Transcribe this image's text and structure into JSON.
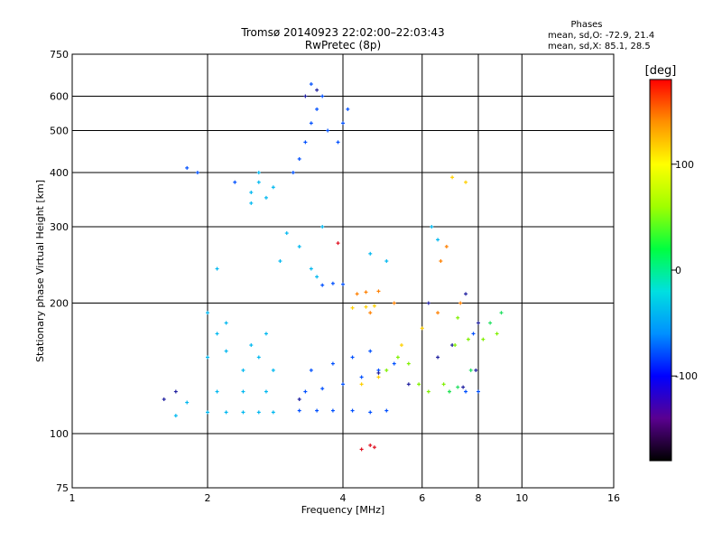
{
  "chart_data": {
    "type": "scatter",
    "title": "Tromsø 20140923 22:02:00–22:03:43",
    "subtitle": "RwPretec (8p)",
    "xlabel": "Frequency [MHz]",
    "ylabel": "Stationary phase Virtual Height [km]",
    "x_scale": "log",
    "y_scale": "log",
    "xlim": [
      1,
      16
    ],
    "ylim": [
      75,
      750
    ],
    "x_ticks": [
      1,
      2,
      4,
      6,
      8,
      10,
      16
    ],
    "x_tick_labels": [
      "1",
      "2",
      "4",
      "6",
      "8",
      "10",
      "16"
    ],
    "y_ticks": [
      75,
      100,
      200,
      300,
      400,
      500,
      600,
      750
    ],
    "y_tick_labels": [
      "75",
      "100",
      "200",
      "300",
      "400",
      "500",
      "600",
      "750"
    ],
    "grid": true,
    "phase_info": {
      "heading": "Phases",
      "line_o": "mean, sd,O: -72.9, 21.4",
      "line_x": "mean, sd,X:  85.1, 28.5"
    },
    "colorbar": {
      "label": "[deg]",
      "range": [
        -180,
        180
      ],
      "ticks": [
        100,
        0,
        -100
      ],
      "tick_labels": [
        "100",
        "0",
        "-100"
      ],
      "colors": [
        "#000000",
        "#5a0090",
        "#0000ff",
        "#0090ff",
        "#00e0e0",
        "#00ff40",
        "#a0ff00",
        "#ffff00",
        "#ff9000",
        "#ff0000"
      ]
    },
    "series": [
      {
        "name": "",
        "color": "#00b8f0",
        "points": [
          [
            2.0,
            112
          ],
          [
            2.2,
            112
          ],
          [
            2.4,
            112
          ],
          [
            2.6,
            112
          ],
          [
            2.8,
            112
          ],
          [
            2.1,
            125
          ],
          [
            2.4,
            125
          ],
          [
            2.7,
            125
          ],
          [
            1.8,
            118
          ],
          [
            1.7,
            110
          ],
          [
            2.0,
            150
          ],
          [
            2.1,
            170
          ],
          [
            2.0,
            190
          ],
          [
            2.2,
            180
          ],
          [
            2.5,
            160
          ],
          [
            2.7,
            170
          ],
          [
            2.6,
            150
          ],
          [
            2.8,
            140
          ],
          [
            2.4,
            140
          ],
          [
            2.2,
            155
          ],
          [
            2.5,
            360
          ],
          [
            2.6,
            380
          ],
          [
            2.7,
            350
          ],
          [
            2.6,
            400
          ],
          [
            2.5,
            340
          ],
          [
            2.8,
            370
          ],
          [
            3.0,
            290
          ],
          [
            3.2,
            270
          ],
          [
            3.4,
            240
          ],
          [
            3.5,
            230
          ],
          [
            4.6,
            260
          ],
          [
            5.0,
            250
          ],
          [
            6.3,
            300
          ],
          [
            6.5,
            280
          ],
          [
            2.1,
            240
          ],
          [
            2.9,
            250
          ],
          [
            3.6,
            300
          ]
        ]
      },
      {
        "name": "",
        "color": "#0050ff",
        "points": [
          [
            3.2,
            113
          ],
          [
            3.5,
            113
          ],
          [
            3.8,
            113
          ],
          [
            4.2,
            113
          ],
          [
            4.6,
            112
          ],
          [
            5.0,
            113
          ],
          [
            3.3,
            125
          ],
          [
            3.6,
            127
          ],
          [
            4.0,
            130
          ],
          [
            4.4,
            135
          ],
          [
            4.8,
            140
          ],
          [
            5.2,
            145
          ],
          [
            3.4,
            140
          ],
          [
            3.8,
            145
          ],
          [
            4.2,
            150
          ],
          [
            4.6,
            155
          ],
          [
            3.6,
            220
          ],
          [
            3.8,
            222
          ],
          [
            4.0,
            221
          ],
          [
            3.1,
            400
          ],
          [
            3.2,
            430
          ],
          [
            3.3,
            470
          ],
          [
            3.4,
            520
          ],
          [
            3.5,
            560
          ],
          [
            3.6,
            600
          ],
          [
            3.4,
            640
          ],
          [
            3.7,
            500
          ],
          [
            4.0,
            520
          ],
          [
            3.9,
            470
          ],
          [
            4.1,
            560
          ],
          [
            2.3,
            380
          ],
          [
            1.9,
            400
          ],
          [
            1.8,
            410
          ],
          [
            7.5,
            125
          ],
          [
            8.0,
            125
          ],
          [
            7.8,
            170
          ]
        ]
      },
      {
        "name": "",
        "color": "#2020a0",
        "points": [
          [
            1.6,
            120
          ],
          [
            1.7,
            125
          ],
          [
            3.3,
            600
          ],
          [
            3.5,
            620
          ],
          [
            3.2,
            120
          ],
          [
            4.8,
            138
          ],
          [
            6.5,
            150
          ],
          [
            7.0,
            160
          ],
          [
            7.4,
            128
          ],
          [
            6.2,
            200
          ],
          [
            7.5,
            210
          ],
          [
            8.0,
            180
          ],
          [
            5.6,
            130
          ],
          [
            7.9,
            140
          ]
        ]
      },
      {
        "name": "",
        "color": "#ff8000",
        "points": [
          [
            4.5,
            212
          ],
          [
            4.8,
            213
          ],
          [
            4.3,
            210
          ],
          [
            5.2,
            200
          ],
          [
            6.5,
            190
          ],
          [
            7.3,
            200
          ],
          [
            6.6,
            250
          ],
          [
            4.6,
            190
          ],
          [
            6.8,
            270
          ]
        ]
      },
      {
        "name": "",
        "color": "#ffd000",
        "points": [
          [
            4.2,
            195
          ],
          [
            4.5,
            196
          ],
          [
            4.7,
            197
          ],
          [
            5.4,
            160
          ],
          [
            6.0,
            175
          ],
          [
            7.0,
            390
          ],
          [
            7.5,
            380
          ],
          [
            4.4,
            130
          ],
          [
            4.8,
            135
          ]
        ]
      },
      {
        "name": "",
        "color": "#80f000",
        "points": [
          [
            5.3,
            150
          ],
          [
            5.6,
            145
          ],
          [
            5.9,
            130
          ],
          [
            6.2,
            125
          ],
          [
            6.7,
            130
          ],
          [
            7.1,
            160
          ],
          [
            7.6,
            165
          ],
          [
            8.2,
            165
          ],
          [
            8.8,
            170
          ],
          [
            6.9,
            125
          ],
          [
            5.0,
            140
          ],
          [
            7.2,
            185
          ]
        ]
      },
      {
        "name": "",
        "color": "#20e060",
        "points": [
          [
            6.9,
            125
          ],
          [
            7.2,
            128
          ],
          [
            7.7,
            140
          ],
          [
            8.5,
            180
          ],
          [
            9.0,
            190
          ]
        ]
      },
      {
        "name": "",
        "color": "#e01020",
        "points": [
          [
            4.4,
            92
          ],
          [
            4.7,
            93
          ],
          [
            4.6,
            94
          ],
          [
            3.9,
            275
          ]
        ]
      }
    ]
  }
}
